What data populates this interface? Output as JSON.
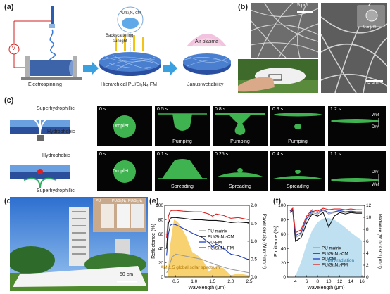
{
  "panels": {
    "a": {
      "label": "(a)",
      "electrospinning": "Electrospinning",
      "hierarchical": "Hierarchical PU/Si₃N₄-FM",
      "janus": "Janus wettability",
      "backscatter_1": "Backscattering",
      "backscatter_2": "sunlight",
      "cm_label": "PU/Si₃N₄-CM",
      "air_plasma": "Air plasma",
      "voltage": "V"
    },
    "b": {
      "label": "(b)",
      "scale_left": "5 μm",
      "scale_right_top": "0.5 μm",
      "scale_right_bottom": "5 μm"
    },
    "c": {
      "label": "(c)",
      "superhydrophilic_top": "Superhydrophillic",
      "hydrophobic_top": "Hydrophobic",
      "hydrophobic_bottom": "Hydrophobic",
      "superhydrophilic_bottom": "Superhydrophillic",
      "row1": [
        {
          "time": "0 s",
          "label": "Droplet"
        },
        {
          "time": "0.5 s",
          "label": "Pumping"
        },
        {
          "time": "0.8 s",
          "label": "Pumping"
        },
        {
          "time": "0.9 s",
          "label": "Pumping"
        },
        {
          "time": "1.2 s",
          "label": ""
        }
      ],
      "row2": [
        {
          "time": "0 s",
          "label": "Droplet"
        },
        {
          "time": "0.1 s",
          "label": "Spreading"
        },
        {
          "time": "0.25 s",
          "label": "Spreading"
        },
        {
          "time": "0.4 s",
          "label": "Spreading"
        },
        {
          "time": "1.1 s",
          "label": ""
        }
      ],
      "wet": "Wet",
      "dry": "Dry"
    },
    "d": {
      "label": "(d)",
      "inset_pu": "PU",
      "inset_fm": "PU/Si₃N₄",
      "inset_cm": "PU/Si₃N₄",
      "scale": "50 cm"
    }
  },
  "chart_data": [
    {
      "panel": "(e)",
      "type": "line",
      "xlabel": "Wavelength (μm)",
      "ylabel": "Reflectance (%)",
      "ylabel_right": "Power density (W m⁻² nm⁻¹)",
      "xlim": [
        0.2,
        2.5
      ],
      "ylim": [
        0,
        100
      ],
      "ylim_right": [
        0,
        2.0
      ],
      "xticks": [
        "0.5",
        "1.0",
        "1.5",
        "2.0",
        "2.5"
      ],
      "yticks": [
        "0",
        "20",
        "40",
        "60",
        "80",
        "100"
      ],
      "yticks_right": [
        "0.0",
        "0.5",
        "1.0",
        "1.5",
        "2.0"
      ],
      "annotation": "AM 1.5 global solar spectrum",
      "legend_position": "center-right",
      "series": [
        {
          "name": "PU matrix",
          "color": "#9e9e9e",
          "x": [
            0.25,
            0.3,
            0.35,
            0.4,
            0.5,
            0.7,
            1.0,
            1.2,
            1.4,
            1.6,
            1.8,
            2.0,
            2.2,
            2.4,
            2.5
          ],
          "y": [
            6,
            10,
            20,
            28,
            32,
            30,
            27,
            25,
            21,
            17,
            14,
            11,
            9,
            7,
            6
          ]
        },
        {
          "name": "PU/Si₃N₄-CM",
          "color": "#111111",
          "x": [
            0.25,
            0.3,
            0.35,
            0.4,
            0.5,
            0.7,
            1.0,
            1.2,
            1.4,
            1.6,
            1.8,
            2.0,
            2.2,
            2.4,
            2.5
          ],
          "y": [
            40,
            75,
            82,
            83,
            83,
            82,
            80,
            80,
            79,
            79,
            78,
            76,
            77,
            76,
            76
          ]
        },
        {
          "name": "PU-FM",
          "color": "#1f3fbf",
          "x": [
            0.25,
            0.3,
            0.35,
            0.4,
            0.5,
            0.7,
            1.0,
            1.2,
            1.4,
            1.5,
            1.6,
            1.8,
            2.0,
            2.2,
            2.4,
            2.5
          ],
          "y": [
            30,
            60,
            72,
            74,
            73,
            68,
            60,
            56,
            48,
            42,
            46,
            40,
            32,
            30,
            26,
            24
          ]
        },
        {
          "name": "PU/Si₃N₄-FM",
          "color": "#e0201d",
          "x": [
            0.25,
            0.3,
            0.35,
            0.4,
            0.5,
            0.7,
            1.0,
            1.2,
            1.4,
            1.5,
            1.6,
            1.8,
            2.0,
            2.2,
            2.4,
            2.5
          ],
          "y": [
            55,
            85,
            92,
            93,
            93,
            92,
            91,
            91,
            88,
            85,
            88,
            86,
            82,
            83,
            81,
            80
          ]
        }
      ],
      "area": {
        "name": "AM 1.5 global solar spectrum",
        "color": "#f5c242",
        "x": [
          0.28,
          0.35,
          0.45,
          0.55,
          0.7,
          0.8,
          0.95,
          1.1,
          1.25,
          1.4,
          1.6,
          1.8,
          2.0,
          2.2,
          2.5
        ],
        "y": [
          0.1,
          0.9,
          1.6,
          1.55,
          1.3,
          1.1,
          0.7,
          0.6,
          0.45,
          0.15,
          0.3,
          0.25,
          0.05,
          0.1,
          0.05
        ]
      }
    },
    {
      "panel": "(f)",
      "type": "line",
      "xlabel": "Wavelength (μm)",
      "ylabel": "Emittance (%)",
      "ylabel_right": "Radiance (W m⁻² sr⁻¹ μm⁻¹)",
      "xlim": [
        2.5,
        16.5
      ],
      "ylim": [
        0,
        100
      ],
      "ylim_right": [
        0,
        12
      ],
      "xticks": [
        "4",
        "6",
        "8",
        "10",
        "12",
        "14",
        "16"
      ],
      "yticks": [
        "0",
        "20",
        "40",
        "60",
        "80",
        "100"
      ],
      "yticks_right": [
        "0",
        "2",
        "4",
        "6",
        "8",
        "10",
        "12"
      ],
      "annotation": "HBIR radiation",
      "legend_position": "center-right",
      "series": [
        {
          "name": "PU matrix",
          "color": "#9e9e9e",
          "x": [
            3,
            3.5,
            4,
            5,
            6,
            7,
            8,
            9,
            10,
            11,
            12,
            13,
            14,
            15,
            16
          ],
          "y": [
            92,
            94,
            55,
            60,
            80,
            90,
            88,
            93,
            88,
            90,
            92,
            90,
            91,
            90,
            90
          ]
        },
        {
          "name": "PU/Si₃N₄-CM",
          "color": "#111111",
          "x": [
            3,
            3.5,
            4,
            5,
            6,
            7,
            8,
            9,
            10,
            11,
            12,
            13,
            14,
            15,
            16
          ],
          "y": [
            90,
            93,
            50,
            55,
            75,
            88,
            85,
            90,
            70,
            85,
            90,
            88,
            90,
            89,
            89
          ]
        },
        {
          "name": "PU-FM",
          "color": "#1f3fbf",
          "x": [
            3,
            3.5,
            4,
            5,
            6,
            7,
            8,
            9,
            10,
            11,
            12,
            13,
            14,
            15,
            16
          ],
          "y": [
            92,
            95,
            58,
            62,
            82,
            92,
            90,
            94,
            90,
            91,
            93,
            91,
            92,
            91,
            91
          ]
        },
        {
          "name": "PU/Si₃N₄-FM",
          "color": "#e0201d",
          "x": [
            3,
            3.5,
            4,
            5,
            6,
            7,
            8,
            9,
            10,
            11,
            12,
            13,
            14,
            15,
            16
          ],
          "y": [
            93,
            96,
            62,
            66,
            85,
            94,
            92,
            96,
            94,
            95,
            95,
            94,
            95,
            94,
            94
          ]
        }
      ],
      "area": {
        "name": "HBIR radiation",
        "color": "#a9d6ec",
        "x": [
          4,
          5,
          6,
          7,
          8,
          9,
          10,
          11,
          12,
          13,
          14,
          15,
          16
        ],
        "y": [
          0.2,
          2.5,
          5.5,
          7.8,
          9.2,
          9.8,
          9.9,
          9.6,
          9.0,
          8.3,
          7.5,
          6.8,
          6.1
        ]
      }
    }
  ]
}
